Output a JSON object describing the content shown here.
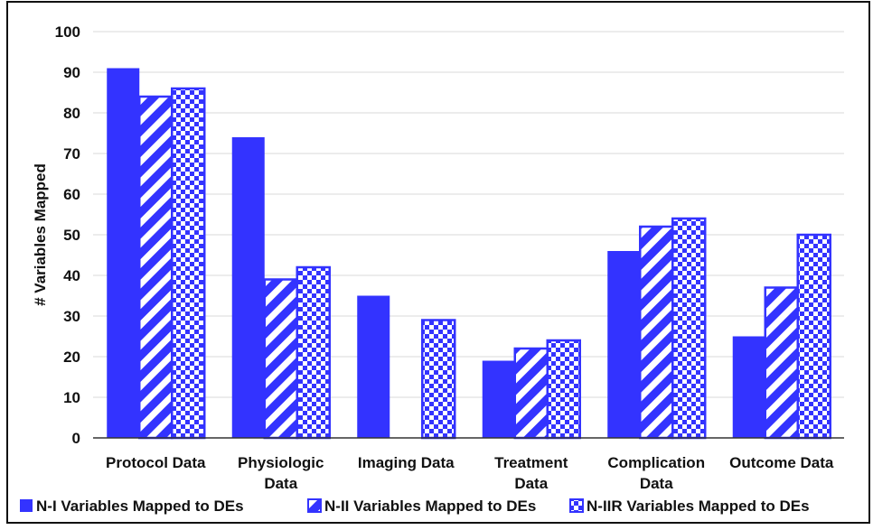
{
  "colors": {
    "bar_blue": "#3333ff",
    "grid": "#d9d9d9",
    "axis": "#333333",
    "frame_border": "#111111"
  },
  "chart_data": {
    "type": "bar",
    "title": "",
    "xlabel": "",
    "ylabel": "# Variables Mapped",
    "ylim": [
      0,
      100
    ],
    "yticks": [
      "0",
      "10",
      "20",
      "30",
      "40",
      "50",
      "60",
      "70",
      "80",
      "90",
      "100"
    ],
    "categories": [
      [
        "Protocol Data"
      ],
      [
        "Physiologic",
        "Data"
      ],
      [
        "Imaging Data"
      ],
      [
        "Treatment",
        "Data"
      ],
      [
        "Complication",
        "Data"
      ],
      [
        "Outcome Data"
      ]
    ],
    "series": [
      {
        "name": "N-I Variables Mapped to DEs",
        "pattern": "solid",
        "values": [
          91,
          74,
          35,
          19,
          46,
          25
        ]
      },
      {
        "name": "N-II Variables Mapped to DEs",
        "pattern": "diagonal",
        "values": [
          84,
          39,
          0,
          22,
          52,
          37
        ]
      },
      {
        "name": "N-IIR Variables Mapped to DEs",
        "pattern": "checker",
        "values": [
          86,
          42,
          29,
          24,
          54,
          50
        ]
      }
    ],
    "grid": true,
    "legend_position": "bottom"
  }
}
